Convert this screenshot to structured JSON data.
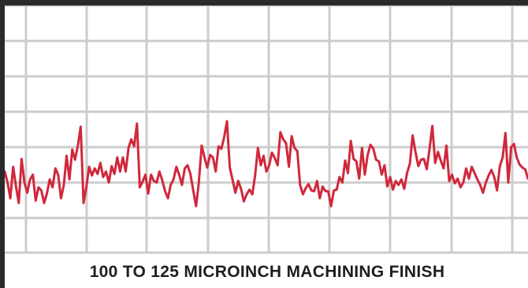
{
  "chart_data": {
    "type": "line",
    "title": "100 TO 125 MICROINCH MACHINING FINISH",
    "xlabel": "",
    "ylabel": "",
    "grid": true,
    "legend": "none",
    "colors": {
      "line": "#d0283c",
      "grid": "#cccccc",
      "frame": "#2a2a2a",
      "background": "#ffffff"
    },
    "series": [
      {
        "values": [
          218,
          232,
          252,
          212,
          237,
          258,
          202,
          232,
          245,
          228,
          222,
          255,
          238,
          242,
          258,
          246,
          228,
          238,
          214,
          222,
          252,
          235,
          198,
          228,
          190,
          203,
          185,
          161,
          258,
          238,
          212,
          223,
          214,
          221,
          207,
          225,
          218,
          232,
          211,
          221,
          200,
          218,
          200,
          218,
          188,
          177,
          186,
          157,
          238,
          231,
          222,
          246,
          222,
          230,
          232,
          218,
          229,
          243,
          252,
          235,
          228,
          212,
          222,
          235,
          214,
          210,
          221,
          242,
          262,
          232,
          185,
          200,
          213,
          197,
          200,
          218,
          186,
          189,
          174,
          154,
          213,
          229,
          245,
          230,
          240,
          256,
          247,
          241,
          247,
          223,
          188,
          210,
          198,
          218,
          210,
          194,
          201,
          210,
          168,
          177,
          182,
          212,
          173,
          188,
          192,
          235,
          247,
          239,
          234,
          242,
          243,
          230,
          252,
          237,
          243,
          243,
          262,
          242,
          241,
          225,
          232,
          204,
          220,
          179,
          202,
          205,
          227,
          188,
          222,
          197,
          184,
          189,
          203,
          205,
          222,
          210,
          237,
          225,
          241,
          230,
          235,
          228,
          240,
          220,
          208,
          172,
          193,
          211,
          203,
          202,
          215,
          189,
          160,
          207,
          193,
          204,
          214,
          185,
          230,
          222,
          233,
          227,
          238,
          232,
          214,
          227,
          212,
          220,
          228,
          235,
          245,
          232,
          223,
          216,
          225,
          242,
          211,
          200,
          169,
          232,
          187,
          183,
          200,
          209,
          213,
          215,
          227
        ]
      }
    ]
  }
}
